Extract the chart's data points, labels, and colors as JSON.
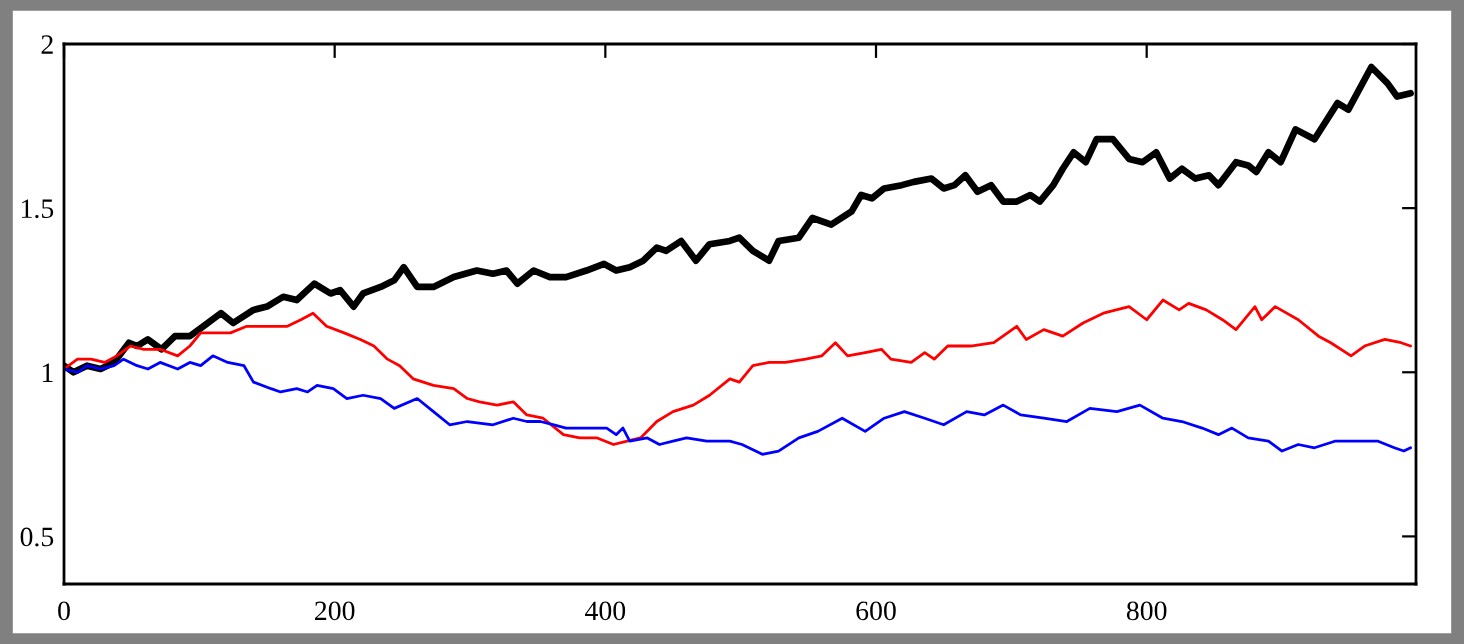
{
  "chart_data": {
    "type": "line",
    "xlim": [
      0,
      999
    ],
    "ylim": [
      0.355,
      2
    ],
    "xticks": [
      0,
      200,
      400,
      600,
      800
    ],
    "yticks": [
      0.5,
      1,
      1.5,
      2
    ],
    "grid": false,
    "legend": false,
    "marker": "none",
    "line_style": "solid",
    "series": [
      {
        "color": "#000000",
        "x": [
          0,
          7,
          17,
          27,
          37,
          48,
          54,
          62,
          72,
          82,
          93,
          103,
          116,
          125,
          140,
          150,
          162,
          172,
          185,
          197,
          204,
          214,
          221,
          234,
          244,
          251,
          261,
          273,
          288,
          305,
          317,
          327,
          335,
          347,
          359,
          371,
          386,
          399,
          408,
          418,
          428,
          438,
          445,
          456,
          467,
          477,
          492,
          499,
          509,
          521,
          528,
          543,
          553,
          567,
          582,
          589,
          597,
          606,
          619,
          628,
          641,
          650,
          658,
          666,
          675,
          685,
          694,
          704,
          714,
          721,
          731,
          738,
          746,
          755,
          763,
          775,
          787,
          797,
          807,
          817,
          826,
          836,
          846,
          853,
          866,
          875,
          881,
          890,
          899,
          910,
          924,
          941,
          949,
          966,
          978,
          985,
          995
        ],
        "values": [
          1.02,
          1.0,
          1.02,
          1.01,
          1.03,
          1.09,
          1.08,
          1.1,
          1.07,
          1.11,
          1.11,
          1.14,
          1.18,
          1.15,
          1.19,
          1.2,
          1.23,
          1.22,
          1.27,
          1.24,
          1.25,
          1.2,
          1.24,
          1.26,
          1.28,
          1.32,
          1.26,
          1.26,
          1.29,
          1.31,
          1.3,
          1.31,
          1.27,
          1.31,
          1.29,
          1.29,
          1.31,
          1.33,
          1.31,
          1.32,
          1.34,
          1.38,
          1.37,
          1.4,
          1.34,
          1.39,
          1.4,
          1.41,
          1.37,
          1.34,
          1.4,
          1.41,
          1.47,
          1.45,
          1.49,
          1.54,
          1.53,
          1.56,
          1.57,
          1.58,
          1.59,
          1.56,
          1.57,
          1.6,
          1.55,
          1.57,
          1.52,
          1.52,
          1.54,
          1.52,
          1.57,
          1.62,
          1.67,
          1.64,
          1.71,
          1.71,
          1.65,
          1.64,
          1.67,
          1.59,
          1.62,
          1.59,
          1.6,
          1.57,
          1.64,
          1.63,
          1.61,
          1.67,
          1.64,
          1.74,
          1.71,
          1.82,
          1.8,
          1.93,
          1.88,
          1.84,
          1.85
        ]
      },
      {
        "color": "#ff0000",
        "x": [
          0,
          10,
          20,
          30,
          39,
          49,
          59,
          71,
          84,
          93,
          101,
          111,
          123,
          135,
          150,
          165,
          175,
          184,
          194,
          207,
          219,
          229,
          239,
          248,
          258,
          273,
          288,
          298,
          307,
          320,
          332,
          342,
          354,
          369,
          381,
          394,
          406,
          416,
          426,
          438,
          450,
          465,
          477,
          492,
          499,
          509,
          521,
          533,
          548,
          560,
          570,
          579,
          592,
          604,
          611,
          626,
          636,
          643,
          653,
          670,
          687,
          704,
          711,
          724,
          738,
          753,
          768,
          787,
          800,
          812,
          824,
          831,
          844,
          856,
          866,
          880,
          885,
          895,
          912,
          927,
          936,
          951,
          961,
          976,
          988,
          995
        ],
        "values": [
          1.01,
          1.04,
          1.04,
          1.03,
          1.05,
          1.08,
          1.07,
          1.07,
          1.05,
          1.08,
          1.12,
          1.12,
          1.12,
          1.14,
          1.14,
          1.14,
          1.16,
          1.18,
          1.14,
          1.12,
          1.1,
          1.08,
          1.04,
          1.02,
          0.98,
          0.96,
          0.95,
          0.92,
          0.91,
          0.9,
          0.91,
          0.87,
          0.86,
          0.81,
          0.8,
          0.8,
          0.78,
          0.79,
          0.8,
          0.85,
          0.88,
          0.9,
          0.93,
          0.98,
          0.97,
          1.02,
          1.03,
          1.03,
          1.04,
          1.05,
          1.09,
          1.05,
          1.06,
          1.07,
          1.04,
          1.03,
          1.06,
          1.04,
          1.08,
          1.08,
          1.09,
          1.14,
          1.1,
          1.13,
          1.11,
          1.15,
          1.18,
          1.2,
          1.16,
          1.22,
          1.19,
          1.21,
          1.19,
          1.16,
          1.13,
          1.2,
          1.16,
          1.2,
          1.16,
          1.11,
          1.09,
          1.05,
          1.08,
          1.1,
          1.09,
          1.08
        ]
      },
      {
        "color": "#0000ff",
        "x": [
          0,
          10,
          17,
          27,
          37,
          44,
          54,
          62,
          71,
          84,
          93,
          101,
          110,
          121,
          133,
          140,
          153,
          160,
          172,
          180,
          187,
          199,
          209,
          221,
          234,
          244,
          261,
          273,
          285,
          298,
          317,
          332,
          342,
          352,
          362,
          371,
          386,
          401,
          408,
          413,
          418,
          431,
          440,
          450,
          460,
          475,
          492,
          501,
          516,
          528,
          543,
          557,
          575,
          592,
          606,
          621,
          636,
          650,
          667,
          680,
          694,
          707,
          724,
          741,
          758,
          778,
          795,
          812,
          826,
          841,
          853,
          863,
          875,
          890,
          900,
          912,
          924,
          939,
          956,
          971,
          983,
          990,
          995
        ],
        "values": [
          1.01,
          1.0,
          1.02,
          1.01,
          1.02,
          1.04,
          1.02,
          1.01,
          1.03,
          1.01,
          1.03,
          1.02,
          1.05,
          1.03,
          1.02,
          0.97,
          0.95,
          0.94,
          0.95,
          0.94,
          0.96,
          0.95,
          0.92,
          0.93,
          0.92,
          0.89,
          0.92,
          0.88,
          0.84,
          0.85,
          0.84,
          0.86,
          0.85,
          0.85,
          0.84,
          0.83,
          0.83,
          0.83,
          0.81,
          0.83,
          0.79,
          0.8,
          0.78,
          0.79,
          0.8,
          0.79,
          0.79,
          0.78,
          0.75,
          0.76,
          0.8,
          0.82,
          0.86,
          0.82,
          0.86,
          0.88,
          0.86,
          0.84,
          0.88,
          0.87,
          0.9,
          0.87,
          0.86,
          0.85,
          0.89,
          0.88,
          0.9,
          0.86,
          0.85,
          0.83,
          0.81,
          0.83,
          0.8,
          0.79,
          0.76,
          0.78,
          0.77,
          0.79,
          0.79,
          0.79,
          0.77,
          0.76,
          0.77
        ]
      }
    ]
  }
}
